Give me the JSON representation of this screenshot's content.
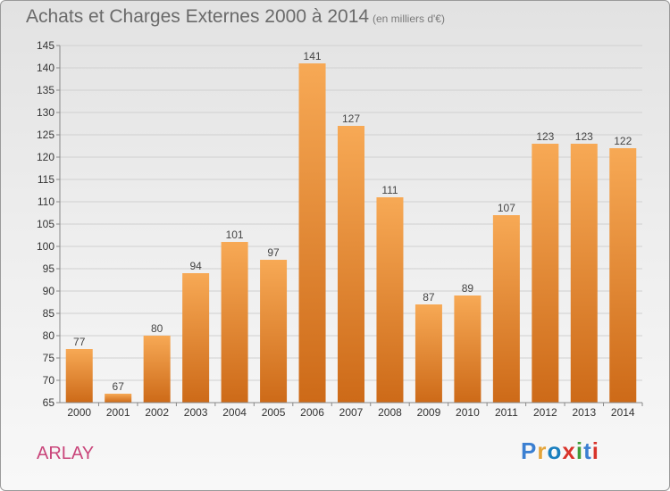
{
  "title": "Achats et Charges Externes 2000 à 2014",
  "subtitle": "(en milliers d'€)",
  "place": "ARLAY",
  "brand": {
    "text": "Proxiti",
    "colors": [
      "#3b7fd1",
      "#e4a43a",
      "#1a7fbf",
      "#d8342b",
      "#3f9c3a",
      "#3b7fd1",
      "#d8342b"
    ]
  },
  "colors": {
    "bar_light": "#f7a955",
    "bar_dark": "#cd6a18",
    "grid": "#d0d0d0",
    "axis": "#888888"
  },
  "chart_data": {
    "type": "bar",
    "categories": [
      "2000",
      "2001",
      "2002",
      "2003",
      "2004",
      "2005",
      "2006",
      "2007",
      "2008",
      "2009",
      "2010",
      "2011",
      "2012",
      "2013",
      "2014"
    ],
    "values": [
      77,
      67,
      80,
      94,
      101,
      97,
      141,
      127,
      111,
      87,
      89,
      107,
      123,
      123,
      122
    ],
    "ylim": [
      65,
      145
    ],
    "yticks": [
      65,
      70,
      75,
      80,
      85,
      90,
      95,
      100,
      105,
      110,
      115,
      120,
      125,
      130,
      135,
      140,
      145
    ],
    "grid": true,
    "xlabel": "",
    "ylabel": ""
  }
}
